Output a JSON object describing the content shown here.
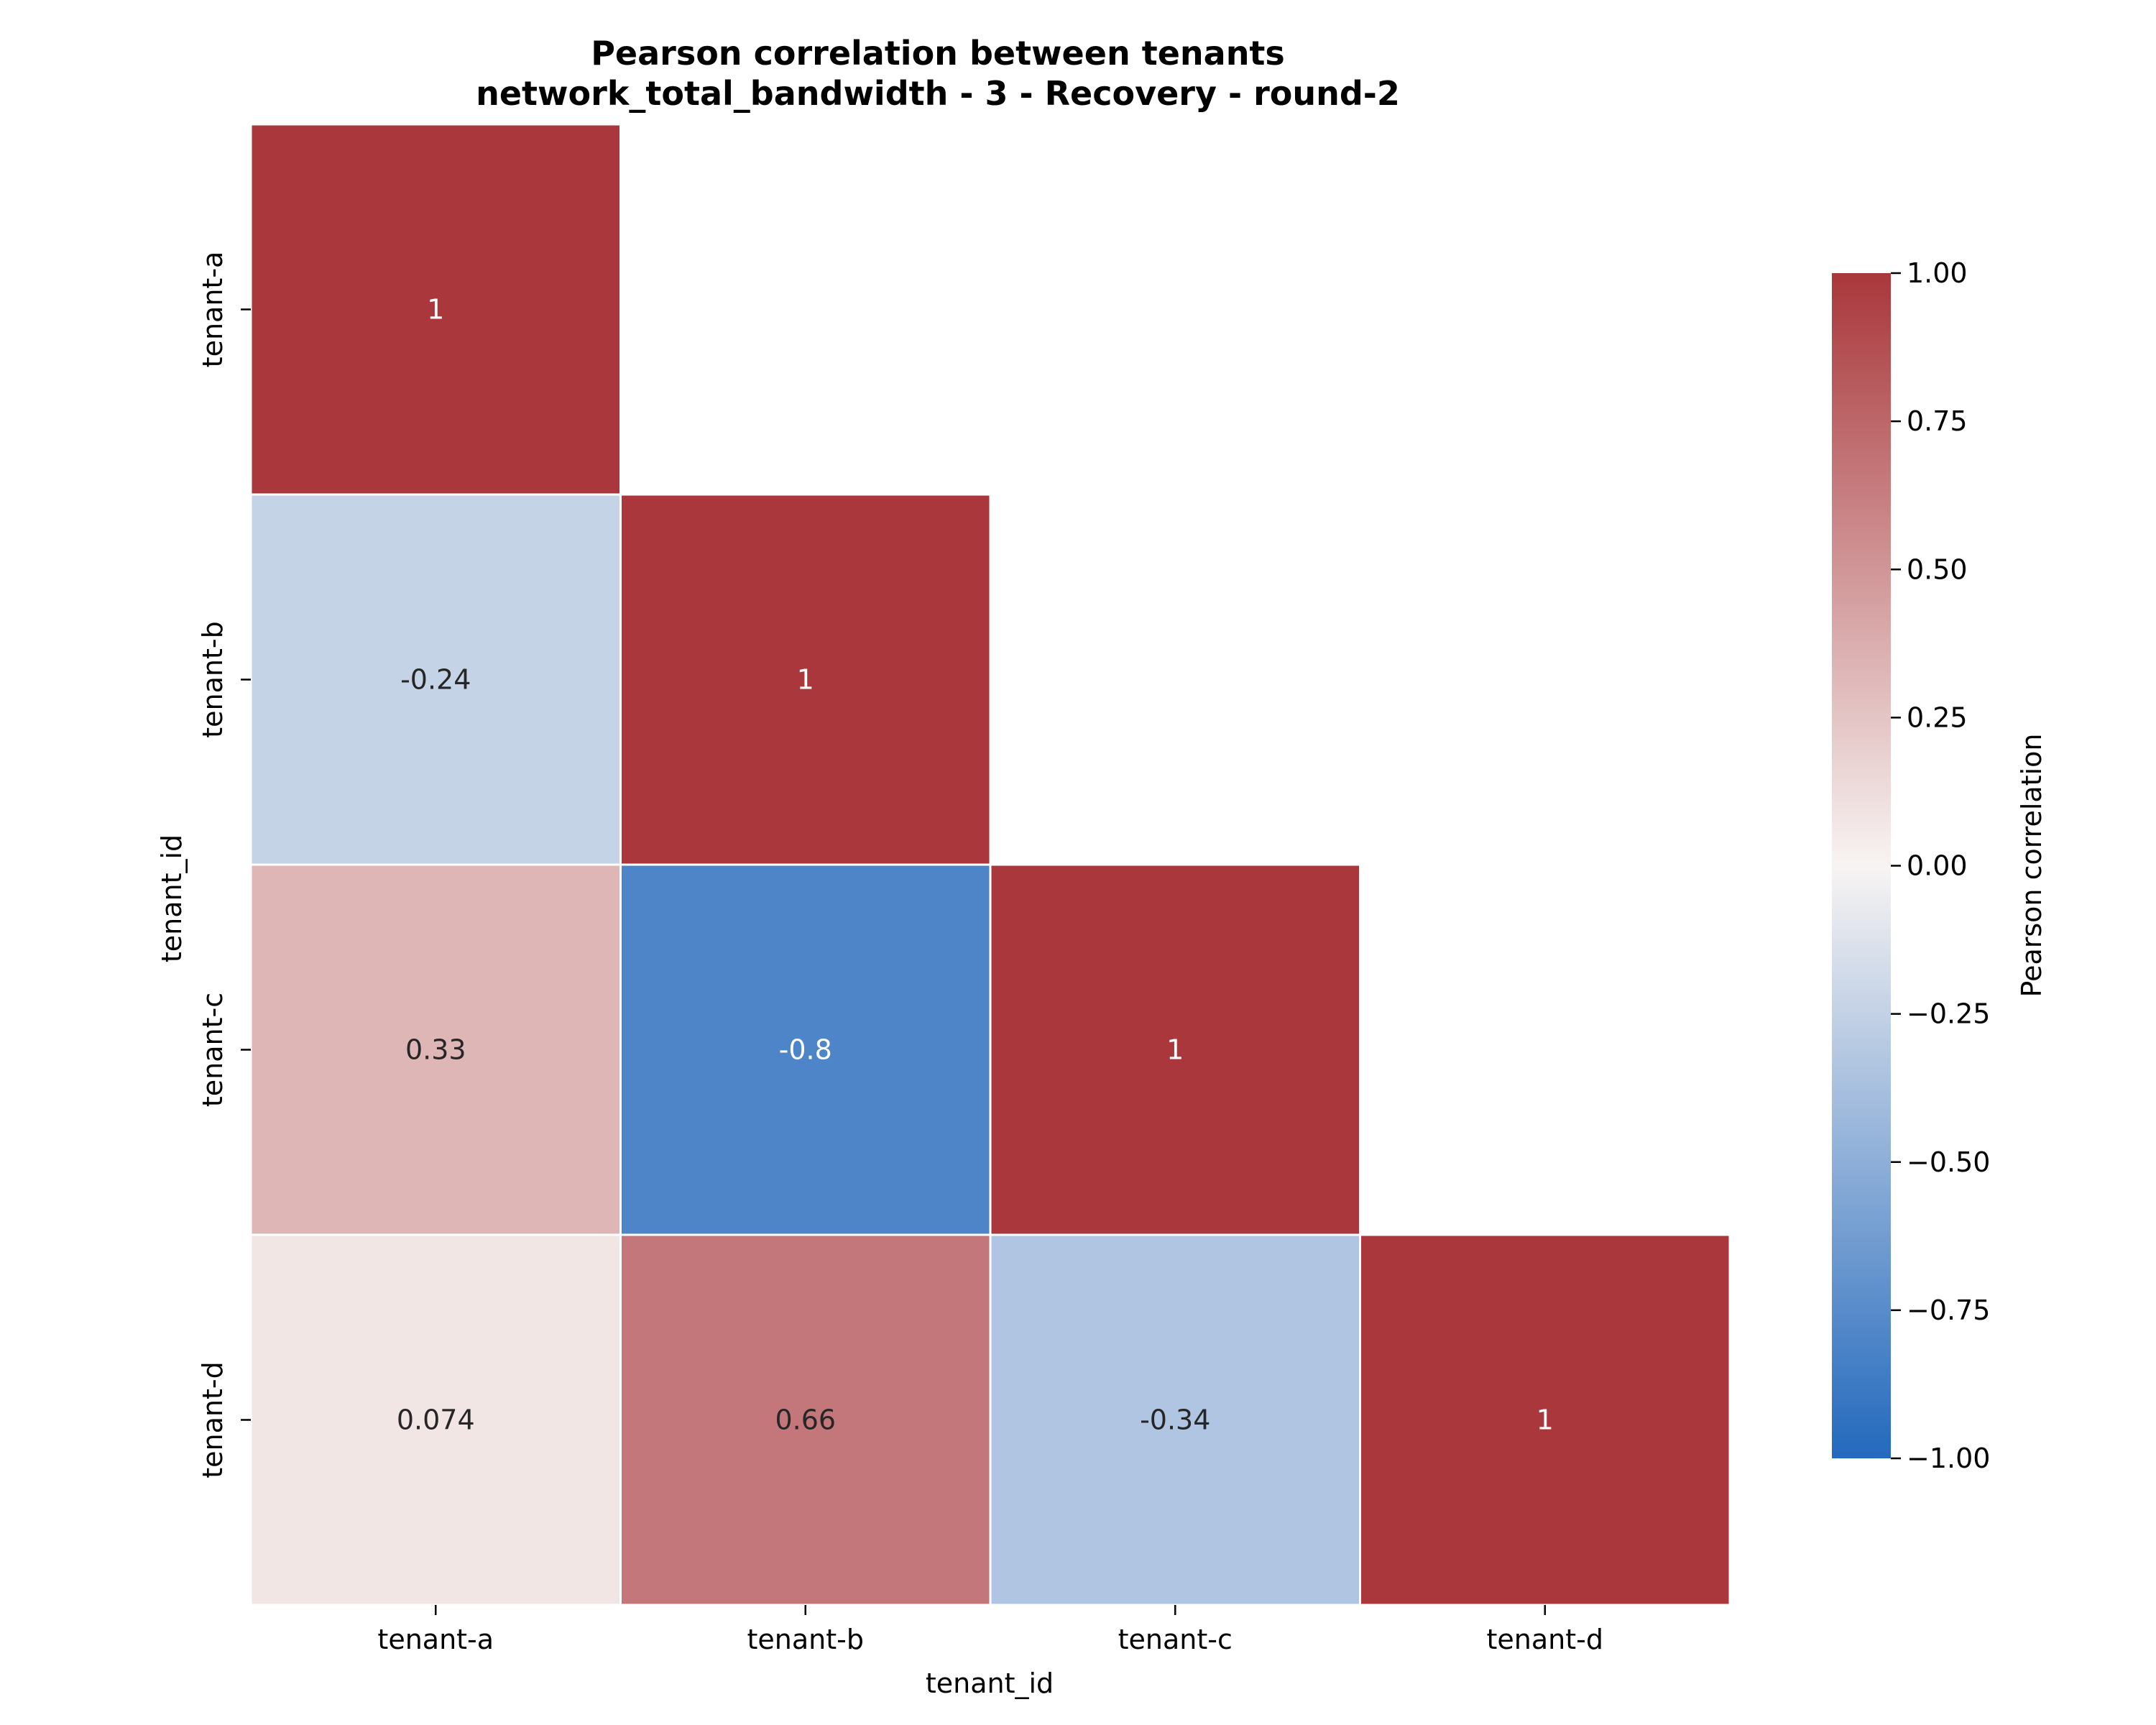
{
  "chart_data": {
    "type": "heatmap",
    "title": "Pearson correlation between tenants",
    "subtitle": "network_total_bandwidth - 3 - Recovery - round-2",
    "xlabel": "tenant_id",
    "ylabel": "tenant_id",
    "x_categories": [
      "tenant-a",
      "tenant-b",
      "tenant-c",
      "tenant-d"
    ],
    "y_categories": [
      "tenant-a",
      "tenant-b",
      "tenant-c",
      "tenant-d"
    ],
    "mask": "upper triangle (above diagonal) hidden",
    "cells": [
      {
        "row": 0,
        "col": 0,
        "value": 1,
        "label": "1"
      },
      {
        "row": 1,
        "col": 0,
        "value": -0.24,
        "label": "-0.24"
      },
      {
        "row": 1,
        "col": 1,
        "value": 1,
        "label": "1"
      },
      {
        "row": 2,
        "col": 0,
        "value": 0.33,
        "label": "0.33"
      },
      {
        "row": 2,
        "col": 1,
        "value": -0.8,
        "label": "-0.8"
      },
      {
        "row": 2,
        "col": 2,
        "value": 1,
        "label": "1"
      },
      {
        "row": 3,
        "col": 0,
        "value": 0.074,
        "label": "0.074"
      },
      {
        "row": 3,
        "col": 1,
        "value": 0.66,
        "label": "0.66"
      },
      {
        "row": 3,
        "col": 2,
        "value": -0.34,
        "label": "-0.34"
      },
      {
        "row": 3,
        "col": 3,
        "value": 1,
        "label": "1"
      }
    ],
    "colorbar": {
      "label": "Pearson correlation",
      "vmin": -1.0,
      "vmax": 1.0,
      "ticks": [
        "1.00",
        "0.75",
        "0.50",
        "0.25",
        "0.00",
        "−0.25",
        "−0.50",
        "−0.75",
        "−1.00"
      ],
      "tick_values": [
        1,
        0.75,
        0.5,
        0.25,
        0,
        -0.25,
        -0.5,
        -0.75,
        -1
      ],
      "colormap": "vlag",
      "color_min": "#2369bd",
      "color_mid": "#f8f4f3",
      "color_max": "#a9373b"
    },
    "grid": false
  }
}
